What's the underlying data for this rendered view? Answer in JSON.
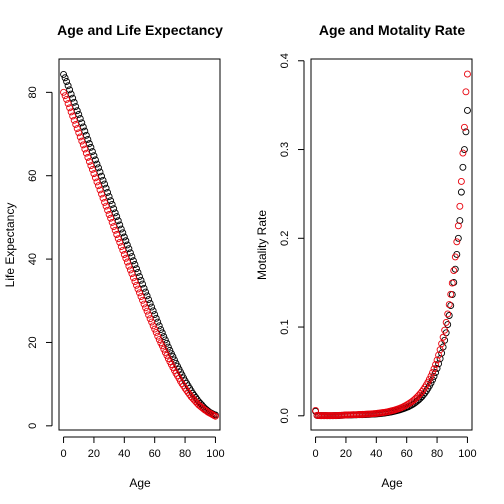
{
  "colors": {
    "series_black": "#000000",
    "series_red": "#e8000b"
  },
  "chart_data": [
    {
      "type": "scatter",
      "title": "Age and Life Expectancy",
      "xlabel": "Age",
      "ylabel": "Life Expectancy",
      "xlim": [
        -3,
        103
      ],
      "ylim": [
        -1,
        88
      ],
      "xticks": [
        0,
        20,
        40,
        60,
        80,
        100
      ],
      "yticks": [
        0,
        20,
        40,
        60,
        80
      ],
      "grid": false,
      "legend": "none",
      "x": [
        0,
        1,
        2,
        3,
        4,
        5,
        6,
        7,
        8,
        9,
        10,
        11,
        12,
        13,
        14,
        15,
        16,
        17,
        18,
        19,
        20,
        21,
        22,
        23,
        24,
        25,
        26,
        27,
        28,
        29,
        30,
        31,
        32,
        33,
        34,
        35,
        36,
        37,
        38,
        39,
        40,
        41,
        42,
        43,
        44,
        45,
        46,
        47,
        48,
        49,
        50,
        51,
        52,
        53,
        54,
        55,
        56,
        57,
        58,
        59,
        60,
        61,
        62,
        63,
        64,
        65,
        66,
        67,
        68,
        69,
        70,
        71,
        72,
        73,
        74,
        75,
        76,
        77,
        78,
        79,
        80,
        81,
        82,
        83,
        84,
        85,
        86,
        87,
        88,
        89,
        90,
        91,
        92,
        93,
        94,
        95,
        96,
        97,
        98,
        99,
        100
      ],
      "series": [
        {
          "color": "#000000",
          "values": [
            84.3,
            83.5,
            82.6,
            81.6,
            80.6,
            79.6,
            78.6,
            77.6,
            76.6,
            75.6,
            74.7,
            73.7,
            72.7,
            71.7,
            70.7,
            69.7,
            68.7,
            67.7,
            66.8,
            65.8,
            64.8,
            63.8,
            62.8,
            61.9,
            60.9,
            59.9,
            58.9,
            58.0,
            57.0,
            56.0,
            55.0,
            54.0,
            53.1,
            52.1,
            51.1,
            50.2,
            49.2,
            48.2,
            47.2,
            46.3,
            45.3,
            44.4,
            43.4,
            42.5,
            41.5,
            40.6,
            39.6,
            38.7,
            37.7,
            36.8,
            35.8,
            34.9,
            34.0,
            33.0,
            32.1,
            31.2,
            30.3,
            29.4,
            28.5,
            27.6,
            26.7,
            25.8,
            24.9,
            24.0,
            23.1,
            22.3,
            21.4,
            20.6,
            19.8,
            18.9,
            18.1,
            17.3,
            16.6,
            15.8,
            15.0,
            14.3,
            13.6,
            12.9,
            12.2,
            11.5,
            10.8,
            10.2,
            9.6,
            9.0,
            8.4,
            7.8,
            7.3,
            6.8,
            6.3,
            5.8,
            5.4,
            5.0,
            4.6,
            4.2,
            3.9,
            3.6,
            3.3,
            3.1,
            2.9,
            2.7,
            2.6
          ]
        },
        {
          "color": "#e8000b",
          "values": [
            80.0,
            79.2,
            78.3,
            77.3,
            76.3,
            75.3,
            74.3,
            73.3,
            72.3,
            71.3,
            70.3,
            69.3,
            68.3,
            67.4,
            66.4,
            65.4,
            64.4,
            63.4,
            62.4,
            61.5,
            60.5,
            59.5,
            58.5,
            57.6,
            56.6,
            55.6,
            54.6,
            53.6,
            52.7,
            51.7,
            50.7,
            49.8,
            48.8,
            47.8,
            46.9,
            45.9,
            44.9,
            44.0,
            43.0,
            42.1,
            41.1,
            40.2,
            39.3,
            38.3,
            37.4,
            36.5,
            35.5,
            34.6,
            33.7,
            32.8,
            31.9,
            31.0,
            30.1,
            29.2,
            28.3,
            27.5,
            26.6,
            25.7,
            24.9,
            24.0,
            23.2,
            22.4,
            21.5,
            20.7,
            19.9,
            19.2,
            18.4,
            17.6,
            16.9,
            16.1,
            15.4,
            14.7,
            14.0,
            13.3,
            12.6,
            12.0,
            11.4,
            10.7,
            10.1,
            9.6,
            9.0,
            8.5,
            8.0,
            7.5,
            7.0,
            6.6,
            6.2,
            5.8,
            5.4,
            5.0,
            4.7,
            4.4,
            4.1,
            3.8,
            3.6,
            3.3,
            3.1,
            2.9,
            2.7,
            2.5,
            2.3
          ]
        }
      ]
    },
    {
      "type": "scatter",
      "title": "Age and Motality Rate",
      "xlabel": "Age",
      "ylabel": "Motality Rate",
      "xlim": [
        -3,
        103
      ],
      "ylim": [
        -0.016,
        0.402
      ],
      "xticks": [
        0,
        20,
        40,
        60,
        80,
        100
      ],
      "yticks": [
        0.0,
        0.1,
        0.2,
        0.3,
        0.4
      ],
      "ytick_labels": [
        "0.0",
        "0.1",
        "0.2",
        "0.3",
        "0.4"
      ],
      "grid": false,
      "legend": "none",
      "x": [
        0,
        1,
        2,
        3,
        4,
        5,
        6,
        7,
        8,
        9,
        10,
        11,
        12,
        13,
        14,
        15,
        16,
        17,
        18,
        19,
        20,
        21,
        22,
        23,
        24,
        25,
        26,
        27,
        28,
        29,
        30,
        31,
        32,
        33,
        34,
        35,
        36,
        37,
        38,
        39,
        40,
        41,
        42,
        43,
        44,
        45,
        46,
        47,
        48,
        49,
        50,
        51,
        52,
        53,
        54,
        55,
        56,
        57,
        58,
        59,
        60,
        61,
        62,
        63,
        64,
        65,
        66,
        67,
        68,
        69,
        70,
        71,
        72,
        73,
        74,
        75,
        76,
        77,
        78,
        79,
        80,
        81,
        82,
        83,
        84,
        85,
        86,
        87,
        88,
        89,
        90,
        91,
        92,
        93,
        94,
        95,
        96,
        97,
        98,
        99,
        100
      ],
      "series": [
        {
          "color": "#000000",
          "values": [
            0.005,
            0.0004,
            0.0003,
            0.0002,
            0.0002,
            0.0002,
            0.0002,
            0.0002,
            0.0001,
            0.0001,
            0.0001,
            0.0001,
            0.0002,
            0.0002,
            0.0002,
            0.0003,
            0.0004,
            0.0005,
            0.0006,
            0.0007,
            0.0008,
            0.0009,
            0.001,
            0.001,
            0.001,
            0.0011,
            0.0011,
            0.0011,
            0.0012,
            0.0012,
            0.0013,
            0.0013,
            0.0014,
            0.0014,
            0.0015,
            0.0016,
            0.0017,
            0.0018,
            0.0019,
            0.002,
            0.0021,
            0.0023,
            0.0024,
            0.0026,
            0.0028,
            0.003,
            0.0032,
            0.0035,
            0.0038,
            0.0041,
            0.0044,
            0.0048,
            0.0052,
            0.0056,
            0.006,
            0.0065,
            0.007,
            0.0076,
            0.0082,
            0.0088,
            0.0095,
            0.0102,
            0.0111,
            0.012,
            0.013,
            0.0141,
            0.0153,
            0.0167,
            0.0182,
            0.0198,
            0.0216,
            0.0236,
            0.0258,
            0.0282,
            0.0309,
            0.0338,
            0.037,
            0.0405,
            0.0444,
            0.0487,
            0.0534,
            0.0586,
            0.0643,
            0.0706,
            0.0775,
            0.0851,
            0.0935,
            0.1028,
            0.113,
            0.1242,
            0.1366,
            0.1502,
            0.1652,
            0.1818,
            0.2,
            0.22,
            0.252,
            0.28,
            0.3,
            0.32,
            0.344
          ]
        },
        {
          "color": "#e8000b",
          "values": [
            0.006,
            0.0005,
            0.0003,
            0.0002,
            0.0002,
            0.0002,
            0.0002,
            0.0002,
            0.0002,
            0.0002,
            0.0002,
            0.0002,
            0.0002,
            0.0003,
            0.0003,
            0.0004,
            0.0005,
            0.0006,
            0.0007,
            0.0008,
            0.0009,
            0.001,
            0.0011,
            0.0011,
            0.0012,
            0.0012,
            0.0013,
            0.0013,
            0.0014,
            0.0015,
            0.0015,
            0.0016,
            0.0017,
            0.0018,
            0.0019,
            0.002,
            0.0021,
            0.0022,
            0.0024,
            0.0025,
            0.0027,
            0.0029,
            0.0031,
            0.0033,
            0.0036,
            0.0038,
            0.0041,
            0.0044,
            0.0048,
            0.0052,
            0.0056,
            0.006,
            0.0065,
            0.007,
            0.0076,
            0.0082,
            0.0089,
            0.0096,
            0.0104,
            0.0112,
            0.0122,
            0.0132,
            0.0143,
            0.0155,
            0.0168,
            0.0182,
            0.0197,
            0.0214,
            0.0232,
            0.0252,
            0.0273,
            0.0296,
            0.0322,
            0.0349,
            0.0379,
            0.0412,
            0.0448,
            0.0487,
            0.053,
            0.0577,
            0.0628,
            0.0684,
            0.0745,
            0.0812,
            0.0885,
            0.0965,
            0.1052,
            0.1148,
            0.1253,
            0.1369,
            0.1496,
            0.1636,
            0.179,
            0.196,
            0.214,
            0.236,
            0.264,
            0.296,
            0.325,
            0.365,
            0.385
          ]
        }
      ]
    }
  ]
}
